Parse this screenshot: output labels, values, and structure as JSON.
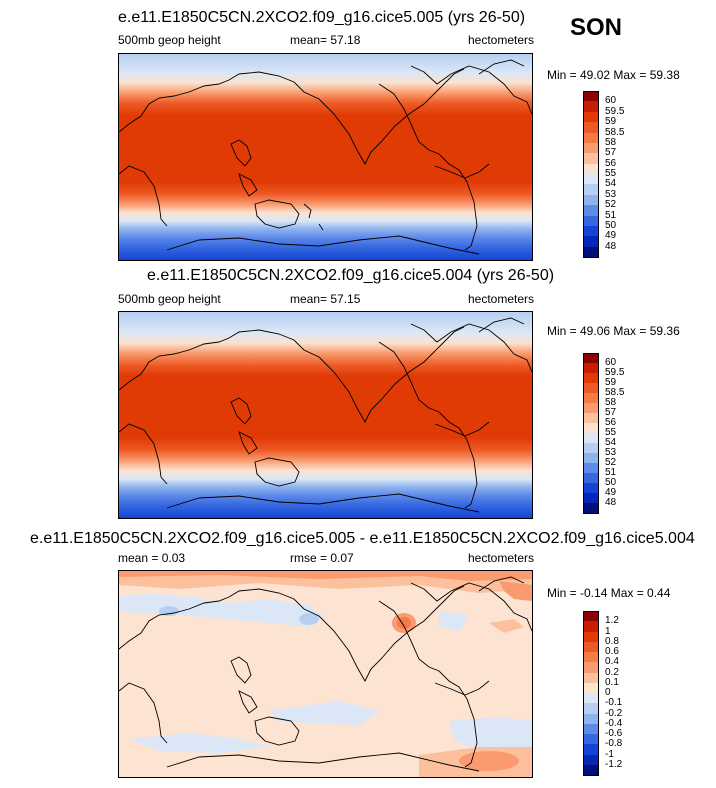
{
  "header": {
    "season": "SON"
  },
  "panels": [
    {
      "title": "e.e11.E1850C5CN.2XCO2.f09_g16.cice5.005 (yrs 26-50)",
      "left_label": "500mb geop height",
      "mean_text": "mean=  57.18",
      "units": "hectometers",
      "minmax": "Min =  49.02 Max =  59.38",
      "colorbar_labels": [
        "60",
        "59.5",
        "59",
        "58.5",
        "58",
        "57",
        "56",
        "55",
        "54",
        "53",
        "52",
        "51",
        "50",
        "49",
        "48"
      ],
      "colorbar_colors": [
        "#8b0000",
        "#c91c00",
        "#e03a05",
        "#ee5a25",
        "#f47b45",
        "#f99b6e",
        "#fcc09d",
        "#fbe2d0",
        "#dbe7f6",
        "#b6cff1",
        "#8fb3ee",
        "#5f8ae8",
        "#3467e0",
        "#1443d6",
        "#0626b8",
        "#00107a"
      ]
    },
    {
      "title": "e.e11.E1850C5CN.2XCO2.f09_g16.cice5.004 (yrs 26-50)",
      "left_label": "500mb geop height",
      "mean_text": "mean=  57.15",
      "units": "hectometers",
      "minmax": "Min =  49.06 Max =  59.36",
      "colorbar_labels": [
        "60",
        "59.5",
        "59",
        "58.5",
        "58",
        "57",
        "56",
        "55",
        "54",
        "53",
        "52",
        "51",
        "50",
        "49",
        "48"
      ],
      "colorbar_colors": [
        "#8b0000",
        "#c91c00",
        "#e03a05",
        "#ee5a25",
        "#f47b45",
        "#f99b6e",
        "#fcc09d",
        "#fbe2d0",
        "#dbe7f6",
        "#b6cff1",
        "#8fb3ee",
        "#5f8ae8",
        "#3467e0",
        "#1443d6",
        "#0626b8",
        "#00107a"
      ]
    },
    {
      "title": "e.e11.E1850C5CN.2XCO2.f09_g16.cice5.005 - e.e11.E1850C5CN.2XCO2.f09_g16.cice5.004",
      "left_label": "mean =   0.03",
      "mean_text": "rmse =   0.07",
      "units": "hectometers",
      "minmax": "Min =  -0.14 Max =   0.44",
      "colorbar_labels": [
        "1.2",
        "1",
        "0.8",
        "0.6",
        "0.4",
        "0.2",
        "0.1",
        "0",
        "-0.1",
        "-0.2",
        "-0.4",
        "-0.6",
        "-0.8",
        "-1",
        "-1.2"
      ],
      "colorbar_colors": [
        "#8b0000",
        "#c91c00",
        "#e03a05",
        "#ee5a25",
        "#f47b45",
        "#f99b6e",
        "#fcc09d",
        "#fde3d2",
        "#dbe7f6",
        "#b6cff1",
        "#8fb3ee",
        "#5f8ae8",
        "#3467e0",
        "#1443d6",
        "#0626b8",
        "#00107a"
      ]
    }
  ]
}
